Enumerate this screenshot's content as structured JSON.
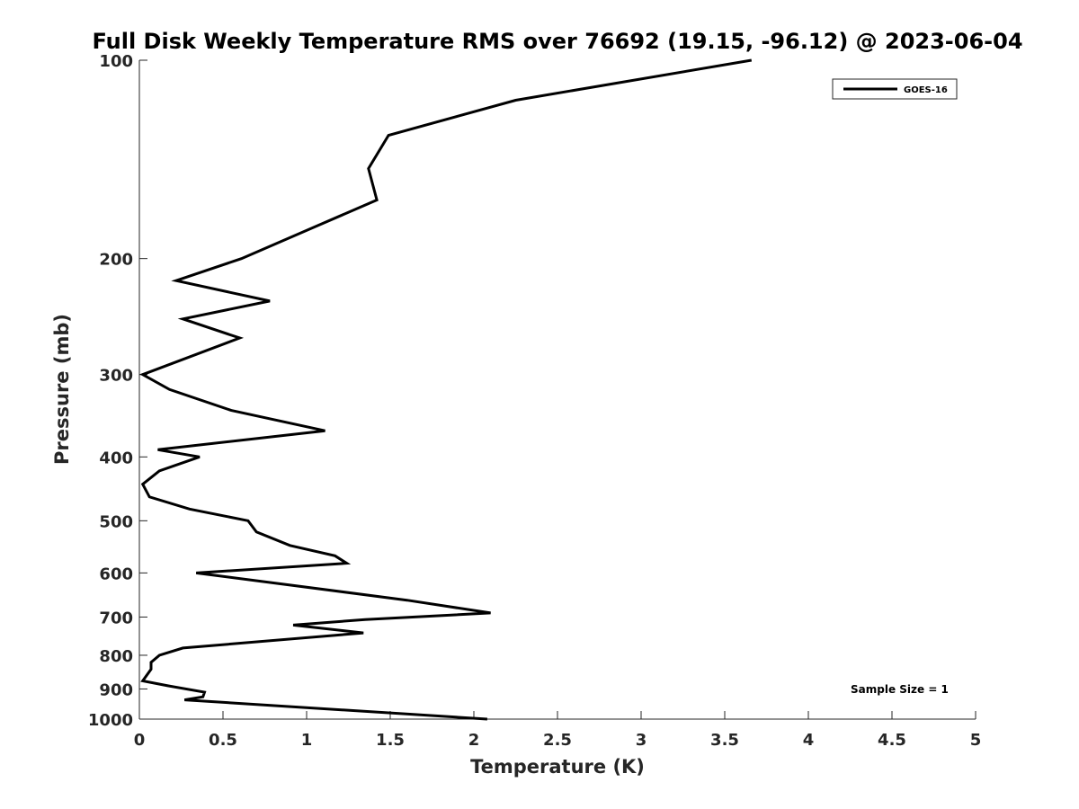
{
  "chart_data": {
    "type": "line",
    "title": "Full Disk Weekly Temperature RMS over 76692 (19.15, -96.12) @ 2023-06-04",
    "xlabel": "Temperature (K)",
    "ylabel": "Pressure (mb)",
    "xlim": [
      0,
      5
    ],
    "ylim": [
      1000,
      100
    ],
    "y_scale": "log",
    "y_reversed": true,
    "x_ticks": [
      "0",
      "0.5",
      "1",
      "1.5",
      "2",
      "2.5",
      "3",
      "3.5",
      "4",
      "4.5",
      "5"
    ],
    "y_ticks": [
      "100",
      "200",
      "300",
      "400",
      "500",
      "600",
      "700",
      "800",
      "900",
      "1000"
    ],
    "grid": false,
    "legend_position": "top-right",
    "annotation": "Sample Size = 1",
    "series": [
      {
        "name": "GOES-16",
        "color": "#000000",
        "x": [
          3.66,
          2.25,
          1.49,
          1.37,
          1.42,
          0.61,
          0.22,
          0.78,
          0.26,
          0.6,
          0.02,
          0.18,
          0.55,
          1.11,
          0.11,
          0.36,
          0.12,
          0.02,
          0.06,
          0.3,
          0.65,
          0.7,
          0.9,
          1.17,
          1.24,
          0.34,
          1.6,
          2.1,
          1.35,
          0.92,
          1.34,
          0.26,
          0.12,
          0.07,
          0.07,
          0.02,
          0.17,
          0.39,
          0.38,
          0.27,
          2.08
        ],
        "y": [
          100,
          115,
          130,
          146,
          163,
          200,
          216,
          232,
          247,
          264,
          300,
          316,
          340,
          365,
          390,
          400,
          420,
          440,
          460,
          480,
          500,
          520,
          545,
          565,
          580,
          600,
          660,
          690,
          706,
          720,
          740,
          780,
          800,
          820,
          840,
          875,
          890,
          910,
          925,
          935,
          1000
        ]
      }
    ]
  }
}
